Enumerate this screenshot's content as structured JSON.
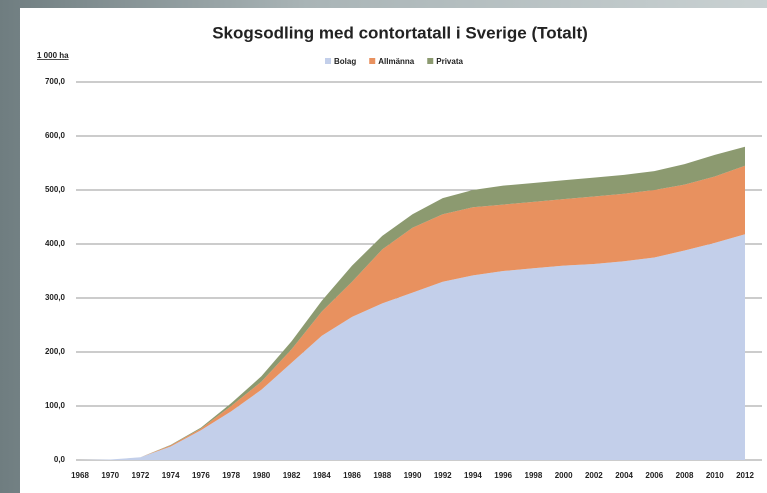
{
  "chart_data": {
    "type": "stacked_area",
    "title": "Skogsodling med contortatall  i Sverige  (Totalt)",
    "y_label": "1 000 ha",
    "categories": [
      "1968",
      "1970",
      "1972",
      "1974",
      "1976",
      "1978",
      "1980",
      "1982",
      "1984",
      "1986",
      "1988",
      "1990",
      "1992",
      "1994",
      "1996",
      "1998",
      "2000",
      "2002",
      "2004",
      "2006",
      "2008",
      "2010",
      "2012"
    ],
    "series": [
      {
        "name": "Bolag",
        "color": "#c3cfea",
        "values": [
          0,
          1,
          5,
          25,
          55,
          90,
          130,
          180,
          230,
          265,
          290,
          310,
          330,
          342,
          350,
          355,
          360,
          363,
          368,
          375,
          388,
          402,
          418
        ]
      },
      {
        "name": "Allmänna",
        "color": "#e8915f",
        "values": [
          0,
          0,
          0,
          2,
          3,
          10,
          15,
          25,
          45,
          65,
          100,
          120,
          125,
          126,
          123,
          123,
          123,
          125,
          125,
          125,
          122,
          123,
          127
        ]
      },
      {
        "name": "Privata",
        "color": "#8c9a70",
        "values": [
          0,
          0,
          0,
          1,
          2,
          5,
          10,
          15,
          20,
          30,
          25,
          25,
          30,
          32,
          35,
          35,
          35,
          35,
          35,
          35,
          38,
          40,
          35
        ]
      }
    ],
    "ylim": [
      0,
      700
    ],
    "yticks": [
      {
        "value": 0,
        "label": "0,0"
      },
      {
        "value": 100,
        "label": "100,0"
      },
      {
        "value": 200,
        "label": "200,0"
      },
      {
        "value": 300,
        "label": "300,0"
      },
      {
        "value": 400,
        "label": "400,0"
      },
      {
        "value": 500,
        "label": "500,0"
      },
      {
        "value": 600,
        "label": "600,0"
      },
      {
        "value": 700,
        "label": "700,0"
      }
    ],
    "grid": true,
    "legend": "top"
  }
}
